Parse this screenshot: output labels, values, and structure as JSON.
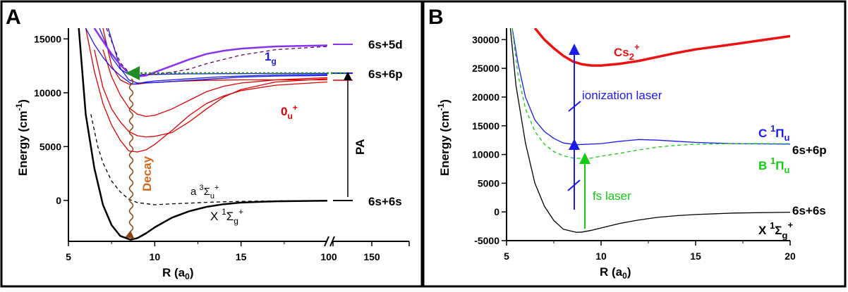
{
  "chart_data": [
    {
      "panel_label": "A",
      "type": "line",
      "xlabel_main": "R (a",
      "xlabel_sub": "0",
      "xlabel_end": ")",
      "ylabel_main": "Energy (cm",
      "ylabel_sup": "-1",
      "ylabel_end": ")",
      "xlim": [
        5,
        20
      ],
      "ylim": [
        -3800,
        16000
      ],
      "xticks": [
        "5",
        "10",
        "15",
        "100",
        "150"
      ],
      "yticks": [
        0,
        5000,
        10000,
        15000
      ],
      "grid": false,
      "legend": "none",
      "asymptotes": [
        {
          "label": "6s+5d",
          "y": 14400
        },
        {
          "label": "6s+6p",
          "y": 11700
        },
        {
          "label": "6s+6s",
          "y": 0
        }
      ],
      "series": [
        {
          "color": "#000000",
          "style": "solid",
          "x": [
            5.6,
            6,
            6.5,
            7,
            7.5,
            8,
            8.6,
            9,
            9.5,
            10,
            11,
            12,
            13,
            14,
            15,
            17,
            20
          ],
          "y": [
            16000,
            8000,
            3000,
            -400,
            -2300,
            -3300,
            -3650,
            -3500,
            -3050,
            -2500,
            -1600,
            -1000,
            -600,
            -350,
            -200,
            -80,
            -20
          ]
        },
        {
          "color": "#000000",
          "style": "dashed",
          "x": [
            6.3,
            6.7,
            7,
            7.5,
            8,
            8.5,
            9,
            10,
            11,
            12,
            13,
            14,
            15,
            17,
            20
          ],
          "y": [
            8000,
            5000,
            3500,
            1800,
            800,
            100,
            -200,
            -400,
            -320,
            -250,
            -180,
            -130,
            -90,
            -40,
            -10
          ]
        },
        {
          "color": "#dd0000",
          "style": "solid",
          "x": [
            6,
            6.5,
            7,
            7.5,
            8,
            8.5,
            9,
            9.5,
            10,
            11,
            12,
            13,
            14,
            15,
            17,
            20
          ],
          "y": [
            16000,
            12000,
            9000,
            7000,
            5600,
            4600,
            4500,
            4700,
            5200,
            6500,
            7900,
            9000,
            9700,
            10200,
            10700,
            11000
          ]
        },
        {
          "color": "#dd0000",
          "style": "solid",
          "x": [
            6.5,
            7,
            7.5,
            8,
            8.5,
            9,
            9.5,
            10,
            11,
            12,
            13,
            14,
            15,
            17,
            20
          ],
          "y": [
            14000,
            10500,
            8500,
            7300,
            6400,
            6000,
            5900,
            5950,
            6300,
            7300,
            8500,
            9600,
            10300,
            11000,
            11300
          ]
        },
        {
          "color": "#dd0000",
          "style": "solid",
          "x": [
            7,
            7.5,
            8,
            8.5,
            9,
            9.5,
            10,
            11,
            12,
            13,
            14,
            15,
            17,
            20
          ],
          "y": [
            14000,
            11500,
            9800,
            8600,
            8000,
            7800,
            7900,
            8500,
            9300,
            10100,
            10600,
            10900,
            11200,
            11400
          ]
        },
        {
          "color": "#dd0000",
          "style": "solid",
          "x": [
            7,
            7.5,
            8,
            8.5,
            9,
            9.5,
            10,
            11,
            12,
            13,
            14,
            15,
            17,
            20
          ],
          "y": [
            16000,
            12500,
            11200,
            10800,
            10800,
            10900,
            10950,
            11050,
            11100,
            11150,
            11180,
            11200,
            11200,
            11200
          ]
        },
        {
          "color": "#1a1aee",
          "style": "solid",
          "x": [
            6,
            6.5,
            7,
            7.5,
            8,
            8.5,
            8.7,
            9,
            9.5,
            10,
            11,
            12,
            13,
            14,
            15,
            17,
            20
          ],
          "y": [
            16000,
            14500,
            13300,
            12300,
            11600,
            11000,
            10800,
            10850,
            11000,
            11100,
            11200,
            11300,
            11400,
            11500,
            11550,
            11650,
            11700
          ]
        },
        {
          "color": "#1a1aee",
          "style": "solid",
          "x": [
            6.8,
            7.5,
            8,
            8.5,
            9,
            10,
            11,
            12,
            13,
            14,
            15,
            17,
            20
          ],
          "y": [
            16000,
            13300,
            12200,
            11700,
            11650,
            11700,
            11730,
            11750,
            11760,
            11770,
            11780,
            11790,
            11800
          ]
        },
        {
          "color": "#1a1aee",
          "style": "solid",
          "x": [
            7.3,
            8,
            8.5,
            9,
            10,
            11,
            12,
            13,
            14,
            15,
            17,
            20
          ],
          "y": [
            16000,
            12300,
            11200,
            10900,
            10950,
            11050,
            11150,
            11250,
            11350,
            11450,
            11550,
            11600
          ]
        },
        {
          "color": "#8833ee",
          "style": "solid",
          "x": [
            6.5,
            7,
            7.5,
            8,
            8.5,
            9,
            9.5,
            10,
            11,
            12,
            13,
            14,
            15,
            17,
            20
          ],
          "y": [
            16000,
            14800,
            13600,
            12600,
            11800,
            11500,
            11600,
            11900,
            12500,
            13100,
            13600,
            13900,
            14100,
            14300,
            14400
          ]
        },
        {
          "color": "#660066",
          "style": "dashed",
          "x": [
            7.2,
            8,
            8.5,
            9,
            10,
            11,
            12,
            13,
            14,
            15,
            17,
            20
          ],
          "y": [
            16000,
            12800,
            11900,
            11700,
            11700,
            11900,
            12200,
            12700,
            13100,
            13500,
            14000,
            14300
          ]
        }
      ],
      "annotations": [
        {
          "label": "1",
          "sub": "g",
          "color": "#1a1aee"
        },
        {
          "label": "0",
          "sub": "u",
          "sup": "+",
          "color": "#dd0000"
        },
        {
          "label": "a ",
          "sup1": "3",
          "main": "Σ",
          "sub": "u",
          "sup": "+",
          "color": "#000000"
        },
        {
          "label": "X ",
          "sup1": "1",
          "main": "Σ",
          "sub": "g",
          "sup": "+",
          "color": "#000000"
        },
        {
          "label": "Decay",
          "color": "#d2691e"
        },
        {
          "label": "PA",
          "color": "#000000"
        }
      ]
    },
    {
      "panel_label": "B",
      "type": "line",
      "xlabel_main": "R (a",
      "xlabel_sub": "0",
      "xlabel_end": ")",
      "ylabel_main": "Energy (cm",
      "ylabel_sup": "-1",
      "ylabel_end": ")",
      "xlim": [
        5,
        20
      ],
      "ylim": [
        -5000,
        32000
      ],
      "xticks": [
        5,
        10,
        15,
        20
      ],
      "yticks": [
        -5000,
        0,
        5000,
        10000,
        15000,
        20000,
        25000,
        30000
      ],
      "grid": false,
      "legend": "none",
      "asymptotes": [
        {
          "label": "6s+6p",
          "y": 11500
        },
        {
          "label": "6s+6s",
          "y": 0
        }
      ],
      "series": [
        {
          "color": "#000000",
          "style": "solid",
          "x": [
            5.2,
            5.5,
            6,
            6.5,
            7,
            7.5,
            8,
            8.7,
            9,
            9.5,
            10,
            11,
            12,
            13,
            14,
            15,
            17,
            20
          ],
          "y": [
            32000,
            22000,
            12000,
            5000,
            1000,
            -1500,
            -3000,
            -3550,
            -3500,
            -3200,
            -2800,
            -2000,
            -1400,
            -950,
            -650,
            -450,
            -200,
            -50
          ]
        },
        {
          "color": "#1a1aee",
          "style": "solid",
          "x": [
            5.3,
            5.6,
            6,
            6.5,
            7,
            7.5,
            8,
            8.7,
            9,
            10,
            11,
            12,
            13,
            14,
            15,
            17,
            20
          ],
          "y": [
            32000,
            26000,
            20000,
            16000,
            14000,
            12800,
            12000,
            11700,
            11750,
            11900,
            12300,
            12600,
            12500,
            12300,
            12100,
            11900,
            11800
          ]
        },
        {
          "color": "#11cc11",
          "style": "dashed",
          "x": [
            5.3,
            5.6,
            6,
            6.5,
            7,
            7.5,
            8,
            8.5,
            9,
            9.5,
            10,
            11,
            12,
            13,
            14,
            15,
            17,
            20
          ],
          "y": [
            32000,
            24000,
            18000,
            14000,
            11800,
            10500,
            9800,
            9400,
            9300,
            9400,
            9700,
            10200,
            10800,
            11300,
            11600,
            11800,
            11900,
            11900
          ]
        },
        {
          "color": "#ee1111",
          "style": "solid",
          "x": [
            6.5,
            7,
            7.5,
            8,
            8.5,
            9,
            9.5,
            10,
            11,
            12,
            13,
            14,
            15,
            17,
            20
          ],
          "y": [
            32000,
            30000,
            28500,
            27200,
            26200,
            25700,
            25500,
            25500,
            25800,
            26300,
            27000,
            27700,
            28300,
            29200,
            30600
          ]
        }
      ],
      "annotations": [
        {
          "main": "Cs",
          "sub": "2",
          "sup": "+",
          "color": "#ee1111"
        },
        {
          "main": "ionization laser",
          "color": "#1a1aee"
        },
        {
          "main": "C ",
          "sup1": "1",
          "greek": "Π",
          "sub": "u",
          "color": "#1a1aee"
        },
        {
          "main": "B ",
          "sup1": "1",
          "greek": "Π",
          "sub": "u",
          "color": "#11cc11"
        },
        {
          "main": "fs laser",
          "color": "#11cc11"
        },
        {
          "main": "X ",
          "sup1": "1",
          "greek": "Σ",
          "sub": "g",
          "sup": "+",
          "color": "#000000"
        }
      ]
    }
  ]
}
